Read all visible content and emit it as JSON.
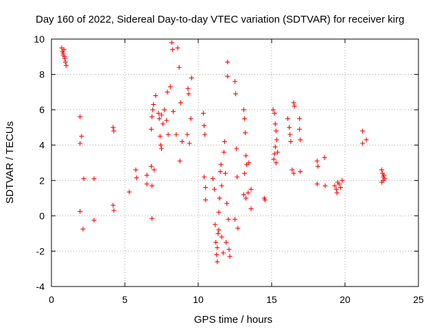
{
  "chart_data": {
    "type": "scatter",
    "title": "Day 160 of 2022, Sidereal Day-to-day VTEC variation (SDTVAR) for receiver kirg",
    "xlabel": "GPS time / hours",
    "ylabel": "SDTVAR / TECUs",
    "xlim": [
      0,
      25
    ],
    "ylim": [
      -4,
      10
    ],
    "xticks": [
      "0",
      "5",
      "10",
      "15",
      "20",
      "25"
    ],
    "yticks": [
      "-4",
      "-2",
      "0",
      "2",
      "4",
      "6",
      "8",
      "10"
    ],
    "grid": true,
    "marker": "plus",
    "color": "#ff0000",
    "series": [
      {
        "name": "SDTVAR",
        "points": [
          [
            0.7,
            9.5
          ],
          [
            0.75,
            9.3
          ],
          [
            0.8,
            9.1
          ],
          [
            0.85,
            9.4
          ],
          [
            0.9,
            8.9
          ],
          [
            0.95,
            8.7
          ],
          [
            1.0,
            8.5
          ],
          [
            0.8,
            9.2
          ],
          [
            0.9,
            9.0
          ],
          [
            1.95,
            5.6
          ],
          [
            1.95,
            4.1
          ],
          [
            2.05,
            4.5
          ],
          [
            1.95,
            0.25
          ],
          [
            2.15,
            -0.75
          ],
          [
            2.2,
            2.1
          ],
          [
            2.9,
            2.1
          ],
          [
            2.9,
            -0.25
          ],
          [
            4.2,
            5.0
          ],
          [
            4.25,
            4.8
          ],
          [
            4.2,
            0.6
          ],
          [
            4.25,
            0.3
          ],
          [
            5.3,
            1.35
          ],
          [
            5.75,
            2.6
          ],
          [
            5.8,
            2.15
          ],
          [
            6.5,
            1.8
          ],
          [
            6.5,
            2.3
          ],
          [
            6.8,
            4.9
          ],
          [
            6.85,
            5.6
          ],
          [
            6.9,
            6.0
          ],
          [
            6.95,
            6.3
          ],
          [
            6.8,
            2.8
          ],
          [
            6.85,
            1.7
          ],
          [
            6.85,
            -0.15
          ],
          [
            7.0,
            2.6
          ],
          [
            7.1,
            6.8
          ],
          [
            7.3,
            5.8
          ],
          [
            7.35,
            5.5
          ],
          [
            7.4,
            4.5
          ],
          [
            7.45,
            4.0
          ],
          [
            7.5,
            3.8
          ],
          [
            7.5,
            5.7
          ],
          [
            7.6,
            5.2
          ],
          [
            7.7,
            6.0
          ],
          [
            7.85,
            5.4
          ],
          [
            7.9,
            7.0
          ],
          [
            7.95,
            4.6
          ],
          [
            8.1,
            7.3
          ],
          [
            8.2,
            9.8
          ],
          [
            8.25,
            9.4
          ],
          [
            8.3,
            5.9
          ],
          [
            8.5,
            4.6
          ],
          [
            8.6,
            9.5
          ],
          [
            8.7,
            8.4
          ],
          [
            8.75,
            3.1
          ],
          [
            8.8,
            6.4
          ],
          [
            8.9,
            4.2
          ],
          [
            9.25,
            4.6
          ],
          [
            9.3,
            7.2
          ],
          [
            9.35,
            6.9
          ],
          [
            9.4,
            4.1
          ],
          [
            9.5,
            5.5
          ],
          [
            9.55,
            7.8
          ],
          [
            10.35,
            5.8
          ],
          [
            10.4,
            5.1
          ],
          [
            10.45,
            4.6
          ],
          [
            10.4,
            2.2
          ],
          [
            10.5,
            1.6
          ],
          [
            10.5,
            0.9
          ],
          [
            11.0,
            2.1
          ],
          [
            11.1,
            1.5
          ],
          [
            11.15,
            -0.5
          ],
          [
            11.2,
            -1.5
          ],
          [
            11.25,
            -2.2
          ],
          [
            11.3,
            -2.6
          ],
          [
            11.35,
            -1.0
          ],
          [
            11.4,
            0.2
          ],
          [
            11.45,
            1.0
          ],
          [
            11.5,
            2.5
          ],
          [
            11.55,
            2.9
          ],
          [
            11.6,
            1.7
          ],
          [
            11.7,
            -2.1
          ],
          [
            11.75,
            3.6
          ],
          [
            11.8,
            4.2
          ],
          [
            11.85,
            2.4
          ],
          [
            11.9,
            -1.5
          ],
          [
            11.95,
            0.7
          ],
          [
            12.0,
            8.7
          ],
          [
            12.0,
            7.9
          ],
          [
            12.05,
            -0.2
          ],
          [
            12.1,
            -1.9
          ],
          [
            12.15,
            -2.3
          ],
          [
            11.3,
            -1.8
          ],
          [
            11.4,
            -0.8
          ],
          [
            11.6,
            -1.2
          ],
          [
            12.5,
            7.6
          ],
          [
            12.55,
            6.9
          ],
          [
            12.6,
            3.8
          ],
          [
            12.65,
            2.2
          ],
          [
            12.7,
            -0.7
          ],
          [
            12.5,
            -0.2
          ],
          [
            13.1,
            6.0
          ],
          [
            13.15,
            5.5
          ],
          [
            13.2,
            4.7
          ],
          [
            13.25,
            3.4
          ],
          [
            13.3,
            2.9
          ],
          [
            13.15,
            2.4
          ],
          [
            13.1,
            1.2
          ],
          [
            13.25,
            1.0
          ],
          [
            13.4,
            1.3
          ],
          [
            13.45,
            3.0
          ],
          [
            13.6,
            1.5
          ],
          [
            13.6,
            0.4
          ],
          [
            14.5,
            1.0
          ],
          [
            14.55,
            0.9
          ],
          [
            15.1,
            6.0
          ],
          [
            15.2,
            5.8
          ],
          [
            15.25,
            5.2
          ],
          [
            15.3,
            4.8
          ],
          [
            15.35,
            4.3
          ],
          [
            15.25,
            3.9
          ],
          [
            15.2,
            3.5
          ],
          [
            15.15,
            3.2
          ],
          [
            15.3,
            3.0
          ],
          [
            15.4,
            3.6
          ],
          [
            16.1,
            5.5
          ],
          [
            16.2,
            5.0
          ],
          [
            16.25,
            4.6
          ],
          [
            16.3,
            4.2
          ],
          [
            16.4,
            2.6
          ],
          [
            16.5,
            2.4
          ],
          [
            16.5,
            6.4
          ],
          [
            16.55,
            6.2
          ],
          [
            16.9,
            5.5
          ],
          [
            16.95,
            4.3
          ],
          [
            16.95,
            2.5
          ],
          [
            16.9,
            4.9
          ],
          [
            18.1,
            3.1
          ],
          [
            18.15,
            2.8
          ],
          [
            18.1,
            1.8
          ],
          [
            18.6,
            3.3
          ],
          [
            18.65,
            1.7
          ],
          [
            19.3,
            1.7
          ],
          [
            19.4,
            1.5
          ],
          [
            19.45,
            1.3
          ],
          [
            19.5,
            1.9
          ],
          [
            19.6,
            1.8
          ],
          [
            19.7,
            1.6
          ],
          [
            19.8,
            2.0
          ],
          [
            21.2,
            4.8
          ],
          [
            21.2,
            4.1
          ],
          [
            21.45,
            4.3
          ],
          [
            22.5,
            2.6
          ],
          [
            22.55,
            2.4
          ],
          [
            22.6,
            2.2
          ],
          [
            22.6,
            2.0
          ],
          [
            22.65,
            2.3
          ],
          [
            22.7,
            2.1
          ],
          [
            22.5,
            1.9
          ]
        ]
      }
    ]
  }
}
